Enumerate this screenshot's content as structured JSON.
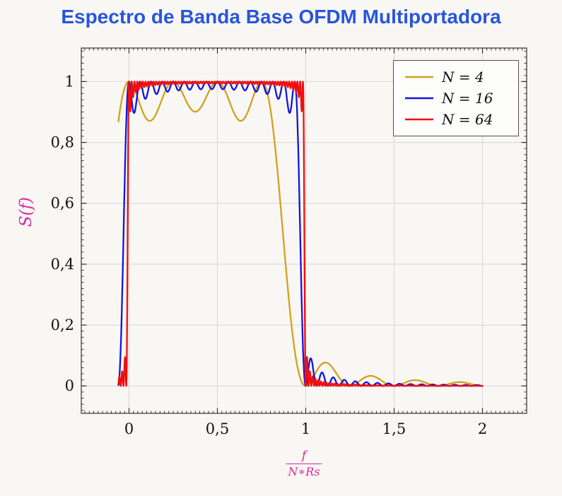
{
  "page": {
    "background": "#f8f7f4"
  },
  "title": {
    "text": "Espectro de Banda Base OFDM Multiportadora",
    "color": "#2a55d9"
  },
  "chart_data": {
    "type": "line",
    "title": "Espectro de Banda Base OFDM Multiportadora",
    "ylabel": "S(f)",
    "xlabel_fraction": {
      "numerator": "f",
      "denominator": "N∗Rs"
    },
    "axis_label_color": "#d62ba0",
    "x_range": [
      -0.27,
      2.25
    ],
    "y_range": [
      -0.09,
      1.11
    ],
    "x_ticks": [
      {
        "v": 0,
        "label": "0"
      },
      {
        "v": 0.5,
        "label": "0,5"
      },
      {
        "v": 1,
        "label": "1"
      },
      {
        "v": 1.5,
        "label": "1,5"
      },
      {
        "v": 2,
        "label": "2"
      }
    ],
    "y_ticks": [
      {
        "v": 0,
        "label": "0"
      },
      {
        "v": 0.2,
        "label": "0,2"
      },
      {
        "v": 0.4,
        "label": "0,4"
      },
      {
        "v": 0.6,
        "label": "0,6"
      },
      {
        "v": 0.8,
        "label": "0,8"
      },
      {
        "v": 1,
        "label": "1"
      }
    ],
    "x_minor_step": 0.025,
    "y_minor_step": 0.02,
    "grid": "major",
    "grid_color": "#d7d6d3",
    "frame_color": "#333333",
    "tick_color": "#222222",
    "tick_label_color": "#111111",
    "legend": {
      "position": "top-right",
      "border_color": "#555555",
      "background": "#fdfdfc"
    },
    "model": "S(x) = sum_{k=0}^{N-1} sinc^2(N*x - k), with sinc(t) = sin(pi*t)/(pi*t) and x = f/(N*Rs)",
    "sample_domain": [
      -0.06,
      2.0
    ],
    "line_width": 2.3,
    "series": [
      {
        "label": "N = 4",
        "N": 4,
        "color": "#d4a01e",
        "plateau": 1.0,
        "passband_x": [
          0,
          0.75
        ],
        "inband_ripple_min": 0.87,
        "first_sidelobe": 0.07
      },
      {
        "label": "N = 16",
        "N": 16,
        "color": "#1315dd",
        "plateau": 1.0,
        "passband_x": [
          0,
          0.9375
        ],
        "inband_ripple_min": 0.89,
        "first_sidelobe": 0.08
      },
      {
        "label": "N = 64",
        "N": 64,
        "color": "#f10e0e",
        "plateau": 1.0,
        "passband_x": [
          0,
          0.9844
        ],
        "inband_ripple_min": 0.89,
        "first_sidelobe": 0.08
      }
    ]
  }
}
